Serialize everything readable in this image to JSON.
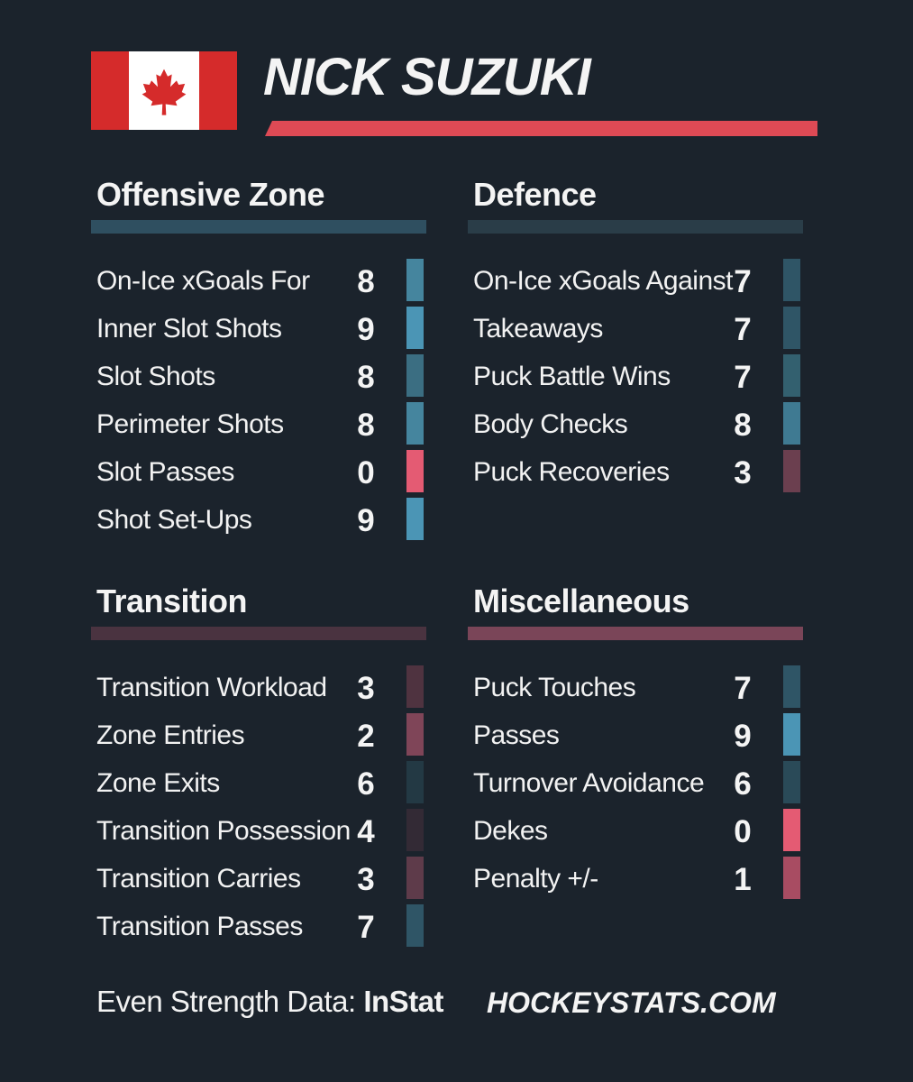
{
  "player": {
    "name": "NICK SUZUKI",
    "flag": "canada-flag-icon"
  },
  "colors": {
    "background": "#1b232c",
    "accent": "#de4a55",
    "offensive_bar": "#2f4f60",
    "defence_bar": "#2a3d48",
    "transition_bar": "#4a3340",
    "misc_bar": "#7a4558"
  },
  "sections": {
    "offensive": {
      "title": "Offensive Zone",
      "rows": [
        {
          "label": "On-Ice xGoals For",
          "value": "8",
          "color": "#45859e"
        },
        {
          "label": "Inner Slot Shots",
          "value": "9",
          "color": "#4b95b5"
        },
        {
          "label": "Slot Shots",
          "value": "8",
          "color": "#3b6e82"
        },
        {
          "label": "Perimeter Shots",
          "value": "8",
          "color": "#45859e"
        },
        {
          "label": "Slot Passes",
          "value": "0",
          "color": "#e45b73"
        },
        {
          "label": "Shot Set-Ups",
          "value": "9",
          "color": "#4b95b5"
        }
      ]
    },
    "defence": {
      "title": "Defence",
      "rows": [
        {
          "label": "On-Ice xGoals Against",
          "value": "7",
          "color": "#2f5566"
        },
        {
          "label": "Takeaways",
          "value": "7",
          "color": "#2f5566"
        },
        {
          "label": "Puck Battle Wins",
          "value": "7",
          "color": "#33606f"
        },
        {
          "label": "Body Checks",
          "value": "8",
          "color": "#3f7a92"
        },
        {
          "label": "Puck Recoveries",
          "value": "3",
          "color": "#6b3f4f"
        }
      ]
    },
    "transition": {
      "title": "Transition",
      "rows": [
        {
          "label": "Transition Workload",
          "value": "3",
          "color": "#4f3340"
        },
        {
          "label": "Zone Entries",
          "value": "2",
          "color": "#7f4558"
        },
        {
          "label": "Zone Exits",
          "value": "6",
          "color": "#233944"
        },
        {
          "label": "Transition Possession",
          "value": "4",
          "color": "#332a35"
        },
        {
          "label": "Transition Carries",
          "value": "3",
          "color": "#5e3b4a"
        },
        {
          "label": "Transition Passes",
          "value": "7",
          "color": "#2f5566"
        }
      ]
    },
    "misc": {
      "title": "Miscellaneous",
      "rows": [
        {
          "label": "Puck Touches",
          "value": "7",
          "color": "#2f5566"
        },
        {
          "label": "Passes",
          "value": "9",
          "color": "#4b95b5"
        },
        {
          "label": "Turnover Avoidance",
          "value": "6",
          "color": "#2a4a58"
        },
        {
          "label": "Dekes",
          "value": "0",
          "color": "#e45b73"
        },
        {
          "label": "Penalty +/-",
          "value": "1",
          "color": "#a84c62"
        }
      ]
    }
  },
  "footer": {
    "data_label": "Even Strength Data:",
    "data_source": "InStat",
    "site": "HOCKEYSTATS.COM"
  }
}
